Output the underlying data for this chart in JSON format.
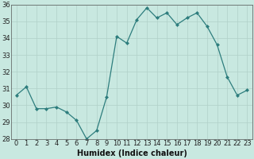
{
  "x": [
    0,
    1,
    2,
    3,
    4,
    5,
    6,
    7,
    8,
    9,
    10,
    11,
    12,
    13,
    14,
    15,
    16,
    17,
    18,
    19,
    20,
    21,
    22,
    23
  ],
  "y": [
    30.6,
    31.1,
    29.8,
    29.8,
    29.9,
    29.6,
    29.1,
    28.0,
    28.5,
    30.5,
    34.1,
    33.7,
    35.1,
    35.8,
    35.2,
    35.5,
    34.8,
    35.2,
    35.5,
    34.7,
    33.6,
    31.7,
    30.6,
    30.9
  ],
  "line_color": "#2d7d7d",
  "marker_color": "#2d7d7d",
  "marker_size": 2.0,
  "bg_color": "#c8e8e0",
  "grid_color": "#b0d0c8",
  "xlabel": "Humidex (Indice chaleur)",
  "xlabel_fontsize": 7,
  "tick_fontsize": 6,
  "ylim": [
    28,
    36
  ],
  "yticks": [
    28,
    29,
    30,
    31,
    32,
    33,
    34,
    35,
    36
  ],
  "xticks": [
    0,
    1,
    2,
    3,
    4,
    5,
    6,
    7,
    8,
    9,
    10,
    11,
    12,
    13,
    14,
    15,
    16,
    17,
    18,
    19,
    20,
    21,
    22,
    23
  ]
}
